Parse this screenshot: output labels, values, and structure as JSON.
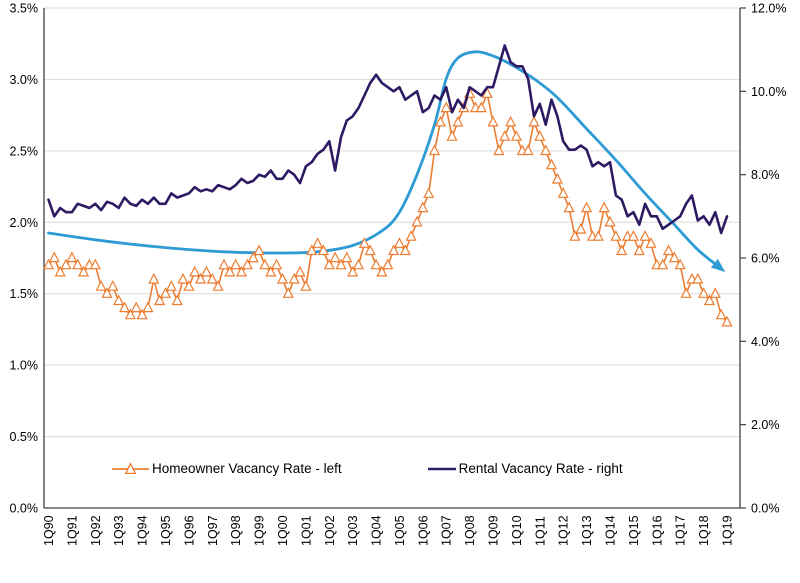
{
  "chart_data": {
    "type": "line",
    "title": "",
    "frequency": "quarterly",
    "points_per_x_label": 4,
    "x_labels": [
      "1Q90",
      "1Q91",
      "1Q92",
      "1Q93",
      "1Q94",
      "1Q95",
      "1Q96",
      "1Q97",
      "1Q98",
      "1Q99",
      "1Q00",
      "1Q01",
      "1Q02",
      "1Q03",
      "1Q04",
      "1Q05",
      "1Q06",
      "1Q07",
      "1Q08",
      "1Q09",
      "1Q10",
      "1Q11",
      "1Q12",
      "1Q13",
      "1Q14",
      "1Q15",
      "1Q16",
      "1Q17",
      "1Q18",
      "1Q19"
    ],
    "left_axis": {
      "min": 0,
      "max": 3.5,
      "tick_step": 0.5,
      "tick_labels": [
        "0.0%",
        "0.5%",
        "1.0%",
        "1.5%",
        "2.0%",
        "2.5%",
        "3.0%",
        "3.5%"
      ]
    },
    "right_axis": {
      "min": 0,
      "max": 12,
      "tick_step": 2,
      "tick_labels": [
        "0.0%",
        "2.0%",
        "4.0%",
        "6.0%",
        "8.0%",
        "10.0%",
        "12.0%"
      ]
    },
    "grid": "horizontal-only",
    "legend_position": "bottom-inside",
    "series": [
      {
        "name": "Homeowner Vacancy Rate - left",
        "axis": "left",
        "color": "#ED7D31",
        "marker": "triangle-outline",
        "values": [
          1.7,
          1.75,
          1.65,
          1.7,
          1.75,
          1.7,
          1.65,
          1.7,
          1.7,
          1.55,
          1.5,
          1.55,
          1.45,
          1.4,
          1.35,
          1.4,
          1.35,
          1.4,
          1.6,
          1.45,
          1.5,
          1.55,
          1.45,
          1.6,
          1.55,
          1.65,
          1.6,
          1.65,
          1.6,
          1.55,
          1.7,
          1.65,
          1.7,
          1.65,
          1.7,
          1.75,
          1.8,
          1.7,
          1.65,
          1.7,
          1.6,
          1.5,
          1.6,
          1.65,
          1.55,
          1.8,
          1.85,
          1.8,
          1.7,
          1.75,
          1.7,
          1.75,
          1.65,
          1.7,
          1.85,
          1.8,
          1.7,
          1.65,
          1.7,
          1.8,
          1.85,
          1.8,
          1.9,
          2.0,
          2.1,
          2.2,
          2.5,
          2.7,
          2.8,
          2.6,
          2.7,
          2.8,
          2.9,
          2.8,
          2.8,
          2.9,
          2.7,
          2.5,
          2.6,
          2.7,
          2.6,
          2.5,
          2.5,
          2.7,
          2.6,
          2.5,
          2.4,
          2.3,
          2.2,
          2.1,
          1.9,
          1.95,
          2.1,
          1.9,
          1.9,
          2.1,
          2.0,
          1.9,
          1.8,
          1.9,
          1.9,
          1.8,
          1.9,
          1.85,
          1.7,
          1.7,
          1.8,
          1.75,
          1.7,
          1.5,
          1.6,
          1.6,
          1.5,
          1.45,
          1.5,
          1.35,
          1.3
        ]
      },
      {
        "name": "Rental Vacancy Rate - right",
        "axis": "right",
        "color": "#2E1A63",
        "marker": "none",
        "values": [
          7.4,
          7.0,
          7.2,
          7.1,
          7.1,
          7.3,
          7.25,
          7.2,
          7.3,
          7.15,
          7.35,
          7.3,
          7.2,
          7.45,
          7.3,
          7.25,
          7.4,
          7.3,
          7.45,
          7.3,
          7.3,
          7.55,
          7.45,
          7.5,
          7.55,
          7.7,
          7.6,
          7.65,
          7.6,
          7.75,
          7.7,
          7.65,
          7.75,
          7.9,
          7.8,
          7.85,
          8.0,
          7.95,
          8.1,
          7.9,
          7.9,
          8.1,
          8.0,
          7.8,
          8.2,
          8.3,
          8.5,
          8.6,
          8.8,
          8.1,
          8.9,
          9.3,
          9.4,
          9.6,
          9.9,
          10.2,
          10.4,
          10.2,
          10.1,
          10.0,
          10.1,
          9.8,
          9.9,
          10.0,
          9.5,
          9.6,
          9.9,
          9.8,
          10.1,
          9.5,
          9.8,
          9.6,
          10.1,
          10.0,
          9.9,
          10.1,
          10.1,
          10.6,
          11.1,
          10.7,
          10.6,
          10.6,
          10.3,
          9.4,
          9.7,
          9.2,
          9.8,
          9.4,
          8.8,
          8.6,
          8.6,
          8.7,
          8.6,
          8.2,
          8.3,
          8.2,
          8.3,
          7.5,
          7.4,
          7.0,
          7.1,
          6.8,
          7.3,
          7.0,
          7.0,
          6.7,
          6.8,
          6.9,
          7.0,
          7.3,
          7.5,
          6.9,
          7.0,
          6.8,
          7.1,
          6.6,
          7.0
        ]
      }
    ],
    "trend_arrow": {
      "description": "smoothed trend annotation curve ending in an arrowhead",
      "axis": "right",
      "color": "#2E9BD5",
      "points": [
        [
          0,
          6.6
        ],
        [
          10,
          6.4
        ],
        [
          20,
          6.25
        ],
        [
          30,
          6.15
        ],
        [
          40,
          6.12
        ],
        [
          46,
          6.15
        ],
        [
          52,
          6.3
        ],
        [
          57,
          6.65
        ],
        [
          60,
          7.1
        ],
        [
          63,
          8.0
        ],
        [
          66,
          9.2
        ],
        [
          68,
          10.3
        ],
        [
          70,
          10.8
        ],
        [
          73,
          10.95
        ],
        [
          76,
          10.85
        ],
        [
          79,
          10.65
        ],
        [
          83,
          10.3
        ],
        [
          87,
          9.85
        ],
        [
          92,
          9.1
        ],
        [
          97,
          8.35
        ],
        [
          102,
          7.55
        ],
        [
          107,
          6.8
        ],
        [
          111,
          6.2
        ],
        [
          114.5,
          5.8
        ]
      ]
    }
  },
  "legend": {
    "homeowner_label": "Homeowner Vacancy Rate - left",
    "rental_label": "Rental Vacancy Rate - right"
  },
  "colors": {
    "background": "#FFFFFF",
    "grid": "#D9D9D9",
    "axis": "#404040",
    "text": "#000000",
    "homeowner": "#ED7D31",
    "rental": "#2E1A63",
    "trend": "#2E9BD5"
  }
}
